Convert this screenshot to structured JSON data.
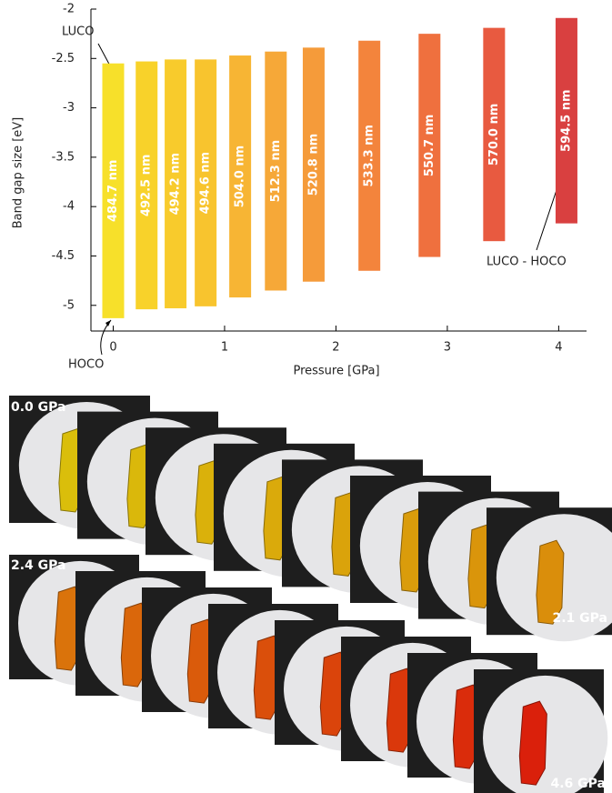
{
  "chart_data": {
    "type": "floating-bar",
    "xlabel": "Pressure [GPa]",
    "ylabel": "Band gap size [eV]",
    "x": [
      0.0,
      0.3,
      0.56,
      0.83,
      1.14,
      1.46,
      1.8,
      2.3,
      2.84,
      3.42,
      4.07
    ],
    "luco": [
      -2.55,
      -2.53,
      -2.51,
      -2.51,
      -2.47,
      -2.43,
      -2.39,
      -2.32,
      -2.25,
      -2.19,
      -2.09
    ],
    "hoco": [
      -5.13,
      -5.04,
      -5.03,
      -5.01,
      -4.92,
      -4.85,
      -4.76,
      -4.65,
      -4.51,
      -4.35,
      -4.17
    ],
    "bar_labels": [
      "484.7 nm",
      "492.5 nm",
      "494.2 nm",
      "494.6 nm",
      "504.0 nm",
      "512.3 nm",
      "520.8 nm",
      "533.3 nm",
      "550.7 nm",
      "570.0 nm",
      "594.5 nm"
    ],
    "colors": [
      "#f7e02a",
      "#f8d22a",
      "#f8cb2c",
      "#f8c42e",
      "#f7b534",
      "#f6a838",
      "#f59b3a",
      "#f3843c",
      "#ef703e",
      "#e85a40",
      "#d94040"
    ],
    "annotations": {
      "luco": "LUCO",
      "hoco": "HOCO",
      "difference": "LUCO - HOCO"
    },
    "xlim": [
      -0.2,
      4.25
    ],
    "ylim": [
      -5.26,
      -2
    ],
    "xticks": [
      0,
      1,
      2,
      3,
      4
    ],
    "yticks": [
      -2,
      -2.5,
      -3,
      -3.5,
      -4,
      -4.5,
      -5
    ]
  },
  "photos": {
    "labels": [
      "0.0 GPa",
      "2.1 GPa",
      "2.4 GPa",
      "4.6 GPa"
    ]
  }
}
